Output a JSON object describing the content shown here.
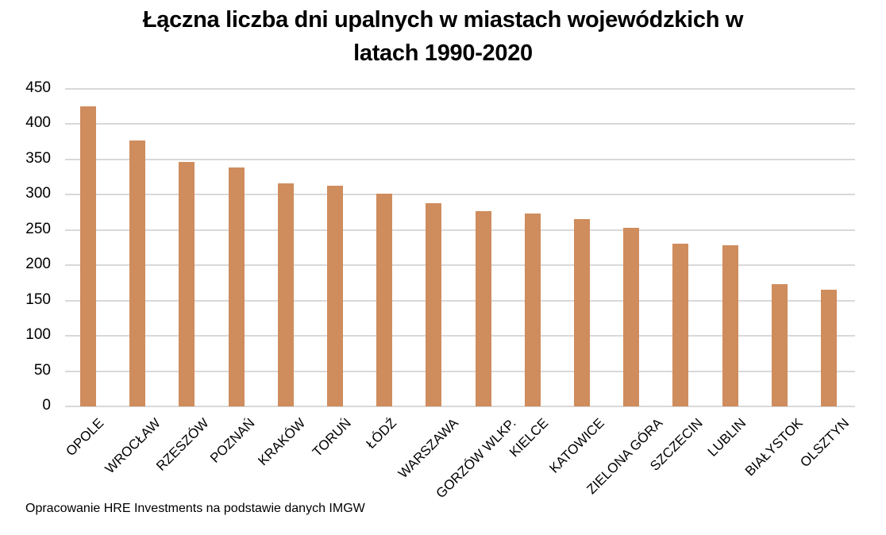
{
  "chart_data": {
    "type": "bar",
    "title": "Łączna liczba dni upalnych w miastach wojewódzkich w latach 1990-2020",
    "title_lines": [
      "Łączna liczba dni upalnych w miastach wojewódzkich w",
      "latach 1990-2020"
    ],
    "xlabel": "",
    "ylabel": "",
    "categories": [
      "OPOLE",
      "WROCŁAW",
      "RZESZÓW",
      "POZNAŃ",
      "KRAKÓW",
      "TORUŃ",
      "ŁÓDŹ",
      "WARSZAWA",
      "GORZÓW WLKP.",
      "KIELCE",
      "KATOWICE",
      "ZIELONA GÓRA",
      "SZCZECIN",
      "LUBLIN",
      "BIAŁYSTOK",
      "OLSZTYN"
    ],
    "values": [
      425,
      377,
      346,
      339,
      316,
      313,
      302,
      288,
      277,
      273,
      265,
      253,
      231,
      228,
      173,
      165
    ],
    "ylim": [
      0,
      450
    ],
    "yticks": [
      0,
      50,
      100,
      150,
      200,
      250,
      300,
      350,
      400,
      450
    ],
    "grid": true,
    "legend": null,
    "bar_color": "#CF8C5D",
    "grid_color": "#D9D9D9"
  },
  "footer": {
    "source": "Opracowanie HRE Investments na podstawie danych IMGW"
  }
}
